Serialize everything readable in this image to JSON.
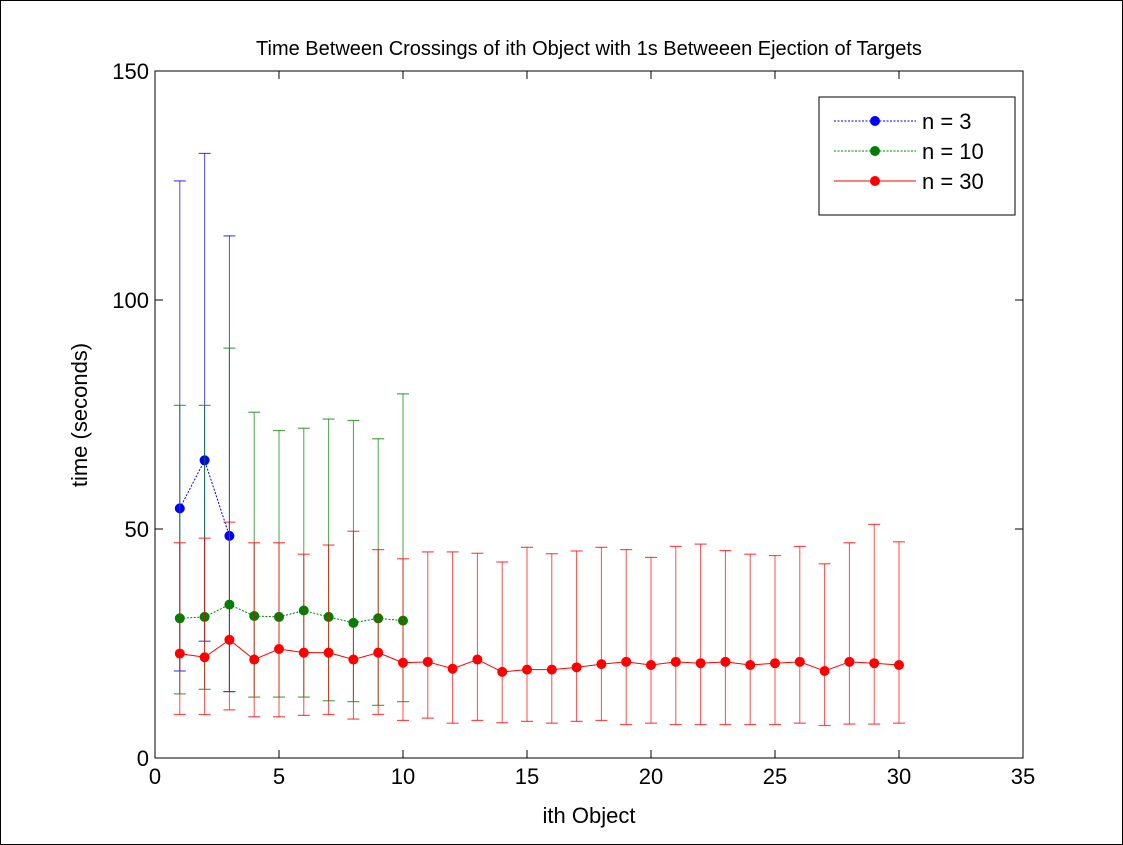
{
  "chart_data": {
    "type": "line",
    "title": "Time Between Crossings of ith Object with 1s Betweeen Ejection of Targets",
    "xlabel": "ith Object",
    "ylabel": "time (seconds)",
    "xlim": [
      0,
      35
    ],
    "ylim": [
      0,
      150
    ],
    "xticks": [
      0,
      5,
      10,
      15,
      20,
      25,
      30,
      35
    ],
    "yticks": [
      0,
      50,
      100,
      150
    ],
    "grid": false,
    "legend_position": "top-right",
    "series": [
      {
        "name": "n = 3",
        "color": "#0000ff",
        "line_style": "dotted",
        "x": [
          1,
          2,
          3
        ],
        "y": [
          54.5,
          65,
          48.5
        ],
        "err_low": [
          19,
          25.5,
          14.5
        ],
        "err_high": [
          126,
          132,
          114
        ]
      },
      {
        "name": "n = 10",
        "color": "#008000",
        "line_style": "dotted",
        "x": [
          1,
          2,
          3,
          4,
          5,
          6,
          7,
          8,
          9,
          10
        ],
        "y": [
          30.5,
          30.8,
          33.5,
          31,
          30.8,
          32.2,
          30.8,
          29.5,
          30.5,
          30
        ],
        "err_low": [
          14,
          15,
          14.5,
          13.3,
          13.3,
          13.3,
          12.5,
          12.3,
          11.5,
          12.3
        ],
        "err_high": [
          77,
          77,
          89.5,
          75.5,
          71.5,
          72,
          74,
          73.7,
          69.7,
          79.5
        ]
      },
      {
        "name": "n = 30",
        "color": "#ff0000",
        "line_style": "solid",
        "x": [
          1,
          2,
          3,
          4,
          5,
          6,
          7,
          8,
          9,
          10,
          11,
          12,
          13,
          14,
          15,
          16,
          17,
          18,
          19,
          20,
          21,
          22,
          23,
          24,
          25,
          26,
          27,
          28,
          29,
          30
        ],
        "y": [
          22.8,
          22,
          25.8,
          21.5,
          23.8,
          23,
          23,
          21.5,
          23,
          20.8,
          21,
          19.5,
          21.5,
          18.8,
          19.3,
          19.3,
          19.8,
          20.5,
          21,
          20.3,
          21,
          20.7,
          21,
          20.3,
          20.7,
          21,
          19,
          21,
          20.7,
          20.3
        ],
        "err_low": [
          9.5,
          9.5,
          10.5,
          9,
          9,
          9.3,
          9.5,
          8.5,
          9.5,
          8.2,
          8.7,
          7.6,
          8.2,
          7.7,
          8,
          7.6,
          8,
          8.2,
          7.3,
          7.6,
          7.3,
          7.3,
          7.3,
          7.3,
          7.3,
          7.6,
          7.1,
          7.4,
          7.4,
          7.6
        ],
        "err_high": [
          47,
          48,
          51.5,
          47,
          47,
          44.5,
          46.5,
          49.5,
          45.5,
          43.5,
          45,
          45,
          44.7,
          42.8,
          46,
          44.6,
          45.2,
          46,
          45.5,
          43.8,
          46.2,
          46.7,
          45.3,
          44.5,
          44.2,
          46.2,
          42.4,
          47,
          51,
          47.2
        ]
      }
    ]
  }
}
